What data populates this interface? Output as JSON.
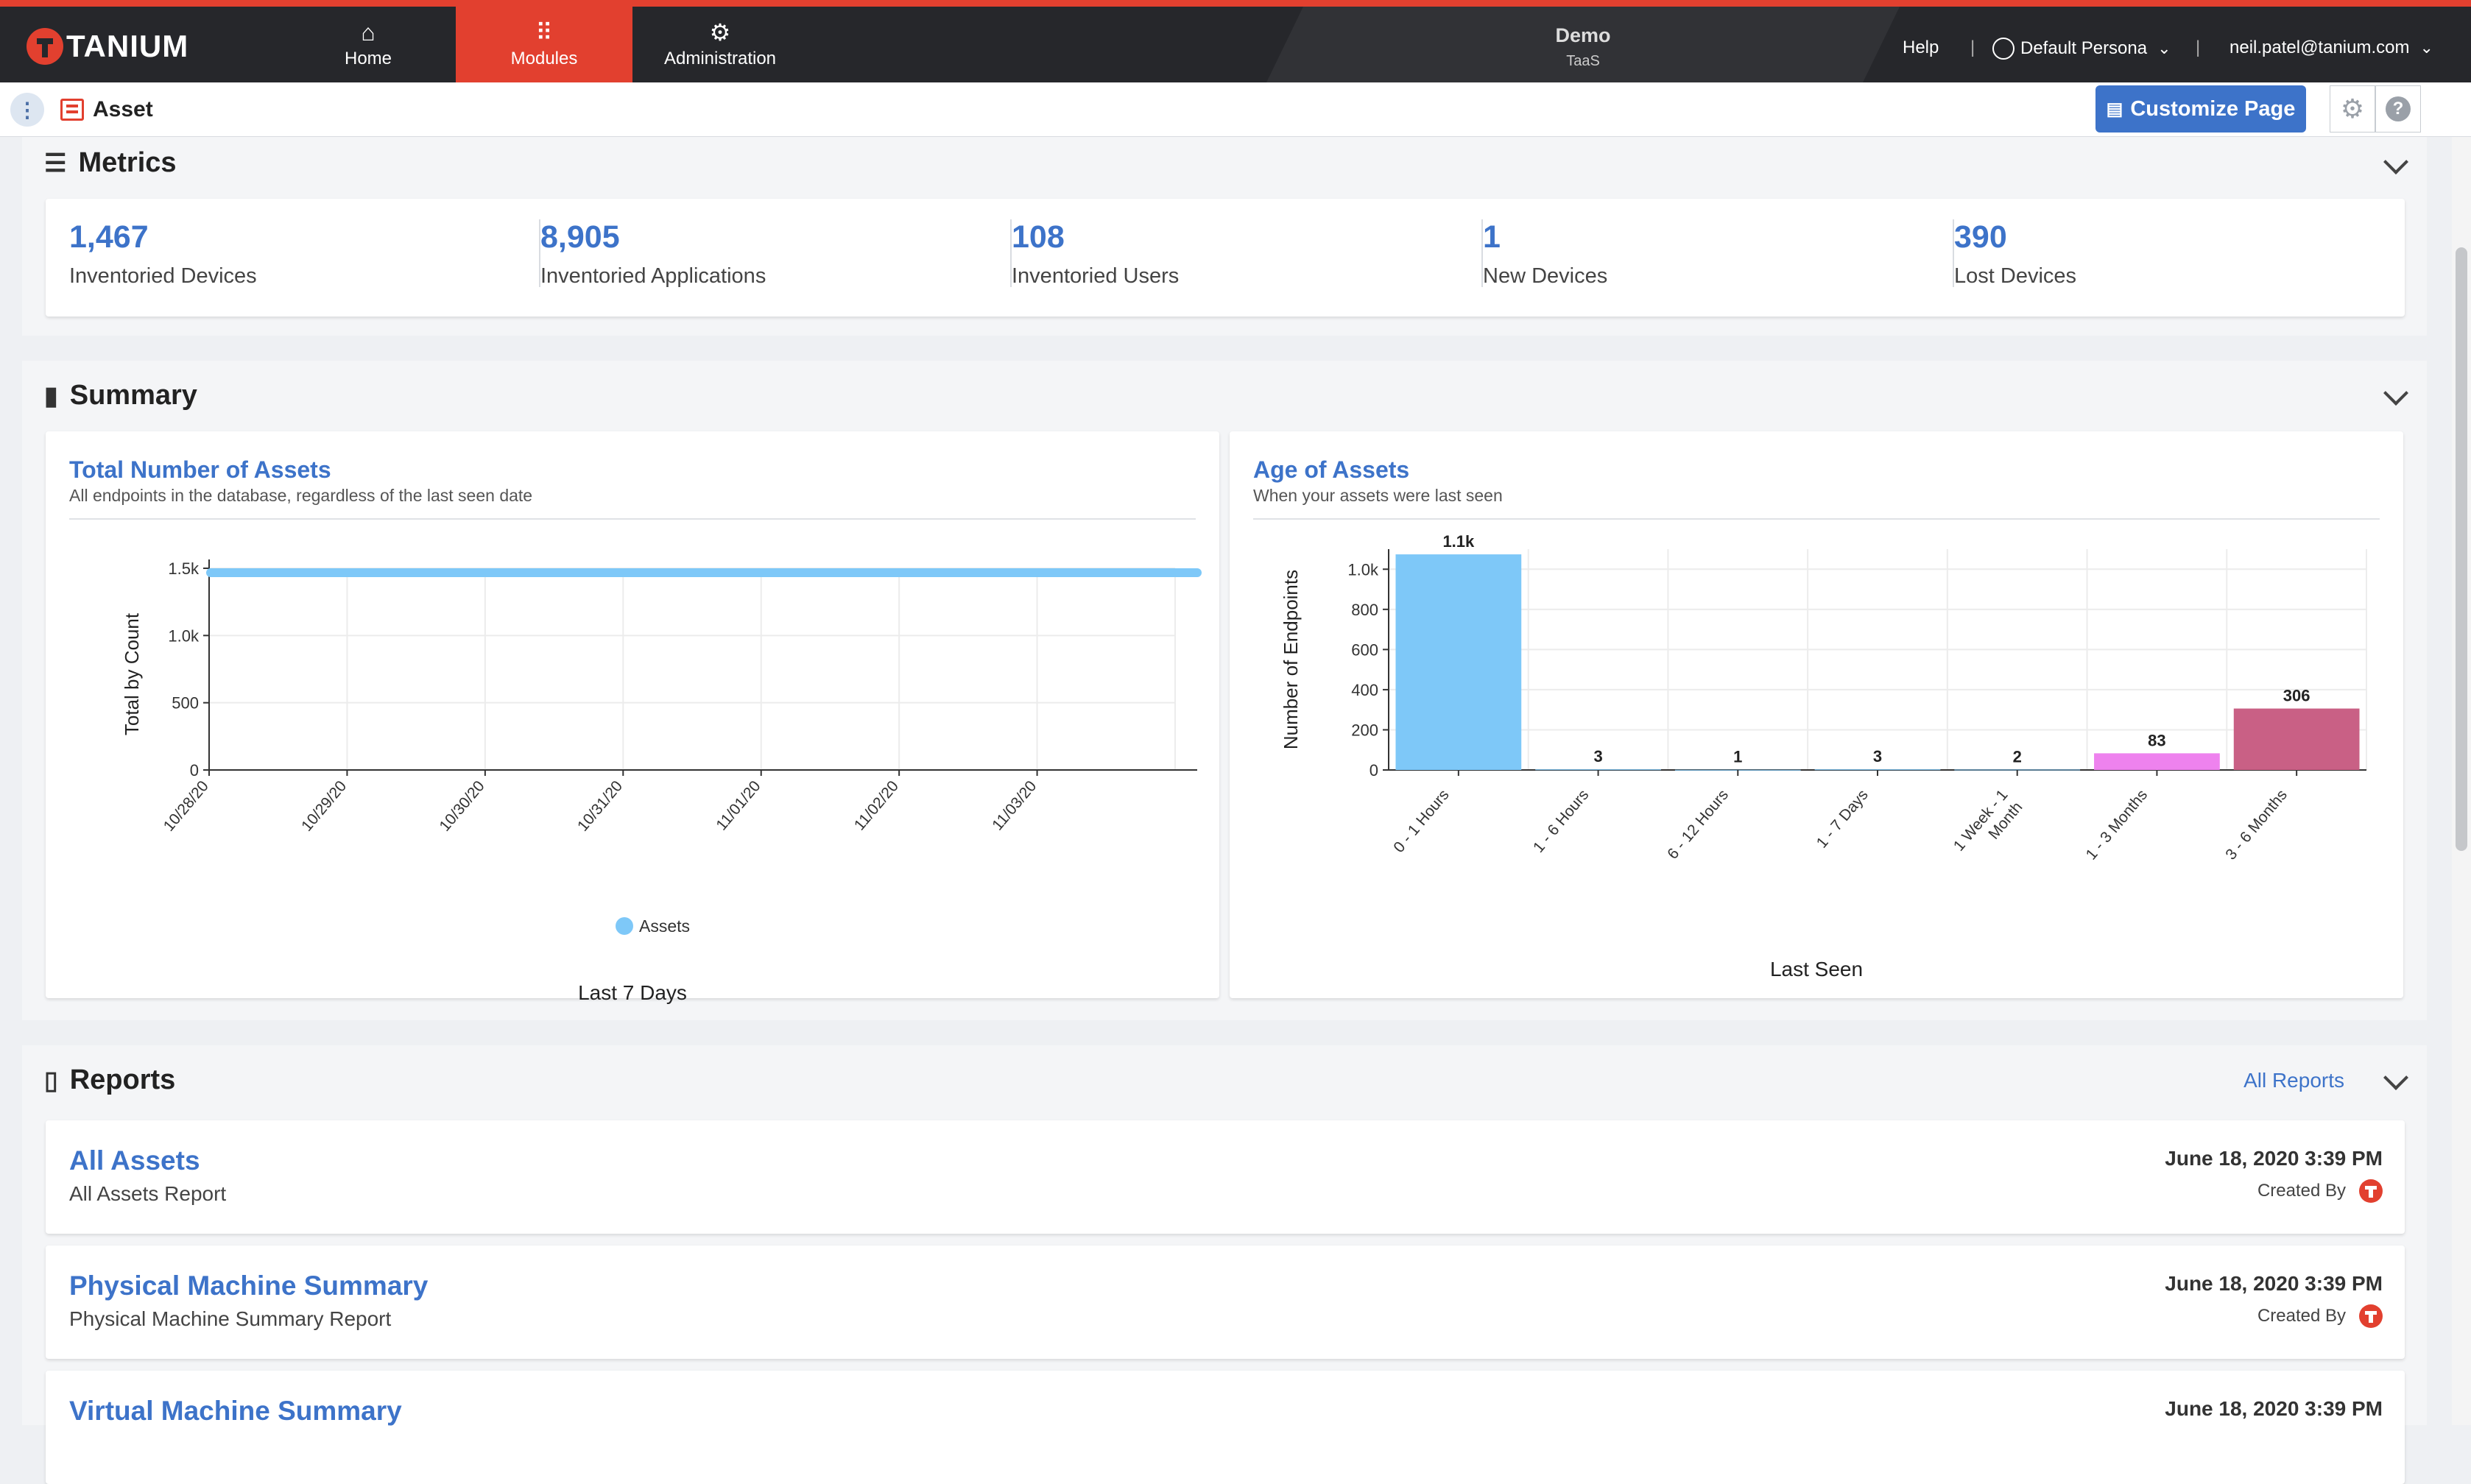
{
  "nav": {
    "logo": "TANIUM",
    "tabs": [
      {
        "label": "Home",
        "icon": "home-icon",
        "glyph": "⌂"
      },
      {
        "label": "Modules",
        "icon": "grid-icon",
        "glyph": "⠿"
      },
      {
        "label": "Administration",
        "icon": "gears-icon",
        "glyph": "⚙"
      }
    ],
    "demo": {
      "title": "Demo",
      "subtitle": "TaaS"
    },
    "help": "Help",
    "persona": "Default Persona",
    "user": "neil.patel@tanium.com"
  },
  "subbar": {
    "title": "Asset",
    "customize": "Customize Page"
  },
  "metrics": {
    "title": "Metrics",
    "items": [
      {
        "value": "1,467",
        "label": "Inventoried Devices"
      },
      {
        "value": "8,905",
        "label": "Inventoried Applications"
      },
      {
        "value": "108",
        "label": "Inventoried Users"
      },
      {
        "value": "1",
        "label": "New Devices"
      },
      {
        "value": "390",
        "label": "Lost Devices"
      }
    ]
  },
  "summary": {
    "title": "Summary",
    "total": {
      "title": "Total Number of Assets",
      "subtitle": "All endpoints in the database, regardless of the last seen date"
    },
    "age": {
      "title": "Age of Assets",
      "subtitle": "When your assets were last seen"
    }
  },
  "chart_data": [
    {
      "type": "line",
      "x": [
        "10/28/20",
        "10/29/20",
        "10/30/20",
        "10/31/20",
        "11/01/20",
        "11/02/20",
        "11/03/20"
      ],
      "series": [
        {
          "name": "Assets",
          "values": [
            1467,
            1467,
            1467,
            1467,
            1467,
            1467,
            1467
          ],
          "color": "#7ec8f8"
        }
      ],
      "ylabel": "Total by Count",
      "xlabel": "Last 7 Days",
      "ylim": [
        0,
        1500
      ],
      "yticks": [
        "0",
        "500",
        "1.0k",
        "1.5k"
      ],
      "grid": true,
      "legend": "bottom"
    },
    {
      "type": "bar",
      "categories": [
        "0 - 1 Hours",
        "1 - 6 Hours",
        "6 - 12 Hours",
        "1 - 7 Days",
        "1 Week - 1 Month",
        "1 - 3 Months",
        "3 - 6 Months"
      ],
      "values": [
        1074,
        3,
        1,
        3,
        2,
        83,
        306
      ],
      "data_labels": [
        "1.1k",
        "3",
        "1",
        "3",
        "2",
        "83",
        "306"
      ],
      "colors": [
        "#7ec8f8",
        "#7ec8f8",
        "#7ec8f8",
        "#7ec8f8",
        "#7ec8f8",
        "#ee82ee",
        "#c96085"
      ],
      "ylabel": "Number of Endpoints",
      "xlabel": "Last Seen",
      "ylim": [
        0,
        1100
      ],
      "yticks": [
        "0",
        "200",
        "400",
        "600",
        "800",
        "1.0k"
      ],
      "grid": true
    }
  ],
  "reports": {
    "title": "Reports",
    "all_link": "All Reports",
    "created_by": "Created By",
    "items": [
      {
        "title": "All Assets",
        "subtitle": "All Assets Report",
        "date": "June 18, 2020 3:39 PM"
      },
      {
        "title": "Physical Machine Summary",
        "subtitle": "Physical Machine Summary Report",
        "date": "June 18, 2020 3:39 PM"
      },
      {
        "title": "Virtual Machine Summary",
        "subtitle": "",
        "date": "June 18, 2020 3:39 PM"
      }
    ]
  }
}
